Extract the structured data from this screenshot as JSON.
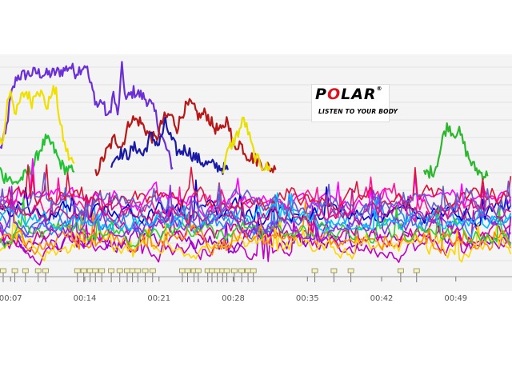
{
  "logo": {
    "brand_before": "P",
    "brand_o": "O",
    "brand_after": "LAR",
    "registered": "®",
    "tagline": "LISTEN TO YOUR BODY",
    "o_color": "#d8141e"
  },
  "chart_data": {
    "type": "line",
    "title": "",
    "xlabel": "",
    "ylabel": "",
    "x_tick_labels": [
      "00:07",
      "00:14",
      "00:21",
      "00:28",
      "00:35",
      "00:42",
      "00:49"
    ],
    "x_ticks_minutes": [
      7,
      14,
      21,
      28,
      35,
      42,
      49
    ],
    "xlim_minutes": [
      6.0,
      54.3
    ],
    "ylim": [
      0,
      100
    ],
    "grid": {
      "horizontal": true,
      "vertical": false
    },
    "legend": "none",
    "lap_marker_minutes": [
      6.3,
      7.4,
      8.4,
      9.6,
      10.3,
      13.3,
      13.9,
      14.5,
      15.0,
      15.6,
      16.5,
      17.3,
      18.0,
      18.5,
      19.0,
      19.7,
      20.4,
      23.2,
      23.7,
      24.3,
      24.7,
      25.6,
      26.0,
      26.5,
      27.0,
      27.4,
      28.1,
      28.8,
      29.4,
      29.9,
      35.7,
      37.5,
      39.1,
      43.8,
      45.3
    ],
    "series": [
      {
        "color": "#6b2fd6",
        "values": [
          [
            6.0,
            60
          ],
          [
            6.5,
            66
          ],
          [
            7.0,
            84
          ],
          [
            7.6,
            94
          ],
          [
            8.4,
            95
          ],
          [
            9.4,
            96
          ],
          [
            10.4,
            95
          ],
          [
            11.3,
            96
          ],
          [
            12.0,
            97
          ],
          [
            12.6,
            99
          ],
          [
            13.1,
            96
          ],
          [
            13.6,
            98
          ],
          [
            14.1,
            100
          ],
          [
            14.5,
            91
          ],
          [
            15.2,
            80
          ],
          [
            15.6,
            83
          ],
          [
            16.2,
            74
          ],
          [
            16.7,
            86
          ],
          [
            17.1,
            75
          ],
          [
            17.5,
            98
          ],
          [
            17.9,
            83
          ],
          [
            18.6,
            87
          ],
          [
            19.4,
            85
          ],
          [
            20.1,
            82
          ],
          [
            20.7,
            76
          ],
          [
            21.2,
            66
          ],
          [
            21.7,
            60
          ],
          [
            22.3,
            51
          ]
        ]
      },
      {
        "color": "#f0e000",
        "values": [
          [
            6.0,
            65
          ],
          [
            6.3,
            63
          ],
          [
            6.7,
            82
          ],
          [
            7.0,
            88
          ],
          [
            7.5,
            76
          ],
          [
            8.0,
            84
          ],
          [
            8.5,
            87
          ],
          [
            9.0,
            82
          ],
          [
            9.5,
            89
          ],
          [
            10.0,
            85
          ],
          [
            10.5,
            79
          ],
          [
            10.9,
            88
          ],
          [
            11.3,
            86
          ],
          [
            11.7,
            71
          ],
          [
            12.1,
            62
          ],
          [
            12.5,
            56
          ],
          [
            13.0,
            53
          ]
        ]
      },
      {
        "color": "#22c233",
        "values": [
          [
            6.0,
            50
          ],
          [
            6.4,
            46
          ],
          [
            6.8,
            48
          ],
          [
            7.3,
            43
          ],
          [
            8.0,
            46
          ],
          [
            9.0,
            50
          ],
          [
            9.7,
            59
          ],
          [
            10.3,
            64
          ],
          [
            10.9,
            62
          ],
          [
            11.5,
            55
          ],
          [
            12.0,
            51
          ],
          [
            13.0,
            49
          ]
        ]
      },
      {
        "color": "#b81717",
        "values": [
          [
            15.0,
            48
          ],
          [
            16.0,
            58
          ],
          [
            16.8,
            65
          ],
          [
            17.5,
            61
          ],
          [
            18.3,
            74
          ],
          [
            19.2,
            73
          ],
          [
            20.0,
            67
          ],
          [
            20.7,
            64
          ],
          [
            21.4,
            74
          ],
          [
            22.1,
            76
          ],
          [
            22.7,
            70
          ],
          [
            23.4,
            79
          ],
          [
            24.0,
            81
          ],
          [
            24.8,
            75
          ],
          [
            25.4,
            77
          ],
          [
            26.2,
            70
          ],
          [
            26.9,
            68
          ],
          [
            27.5,
            75
          ],
          [
            28.0,
            60
          ],
          [
            28.6,
            63
          ],
          [
            29.3,
            57
          ],
          [
            30.1,
            55
          ],
          [
            31.0,
            52
          ],
          [
            32.0,
            50
          ]
        ]
      },
      {
        "color": "#1a1aa8",
        "values": [
          [
            16.5,
            54
          ],
          [
            17.3,
            58
          ],
          [
            18.0,
            57
          ],
          [
            18.8,
            61
          ],
          [
            19.5,
            57
          ],
          [
            20.2,
            66
          ],
          [
            21.0,
            62
          ],
          [
            21.6,
            72
          ],
          [
            22.2,
            64
          ],
          [
            22.8,
            58
          ],
          [
            23.5,
            60
          ],
          [
            24.4,
            56
          ],
          [
            25.3,
            53
          ],
          [
            26.3,
            52
          ],
          [
            27.5,
            50
          ]
        ]
      },
      {
        "color": "#2fb52f",
        "values": [
          [
            46.0,
            48
          ],
          [
            47.0,
            50
          ],
          [
            47.5,
            58
          ],
          [
            47.9,
            68
          ],
          [
            48.3,
            71
          ],
          [
            48.8,
            67
          ],
          [
            49.2,
            69
          ],
          [
            49.7,
            63
          ],
          [
            50.1,
            57
          ],
          [
            50.6,
            52
          ],
          [
            51.2,
            49
          ],
          [
            52.0,
            47
          ]
        ]
      },
      {
        "color": "#e8e000",
        "values": [
          [
            27.0,
            50
          ],
          [
            27.6,
            60
          ],
          [
            28.1,
            64
          ],
          [
            28.6,
            69
          ],
          [
            29.0,
            74
          ],
          [
            29.4,
            68
          ],
          [
            29.8,
            60
          ],
          [
            30.2,
            55
          ],
          [
            30.8,
            52
          ],
          [
            31.5,
            50
          ]
        ]
      },
      {
        "color": "#ff00ff"
      },
      {
        "color": "#c000c0"
      },
      {
        "color": "#9400d3"
      },
      {
        "color": "#e0008c"
      },
      {
        "color": "#1e90ff"
      },
      {
        "color": "#4169e1"
      },
      {
        "color": "#0000cd"
      },
      {
        "color": "#ff1493"
      },
      {
        "color": "#dc143c"
      },
      {
        "color": "#ffd700"
      },
      {
        "color": "#ff8c00"
      },
      {
        "color": "#32cd32"
      },
      {
        "color": "#8a2be2"
      },
      {
        "color": "#00bfff"
      },
      {
        "color": "#c71585"
      },
      {
        "color": "#6a5acd"
      }
    ]
  }
}
